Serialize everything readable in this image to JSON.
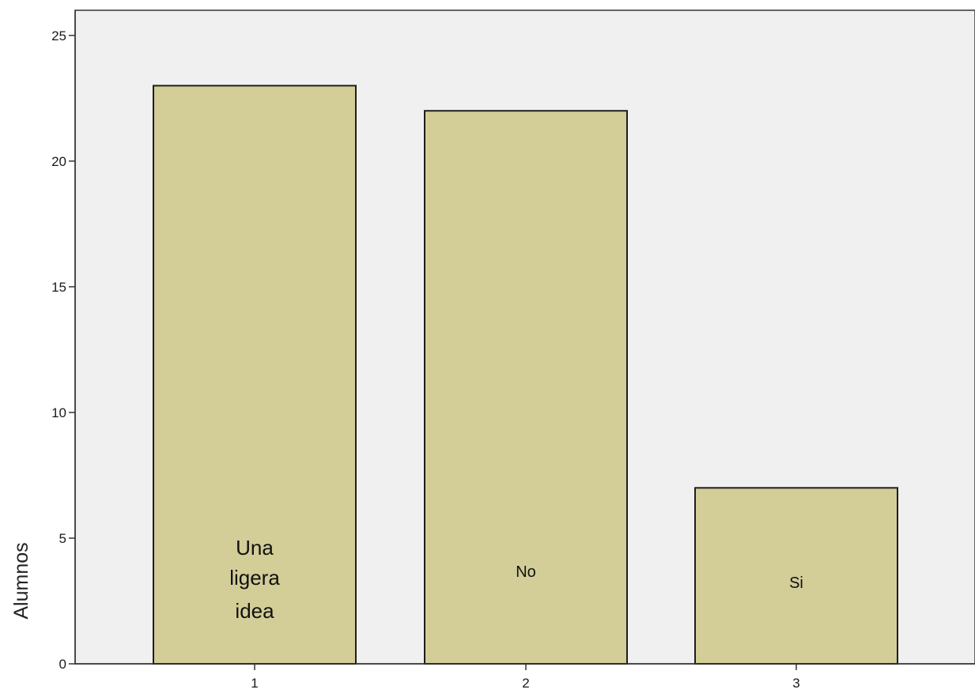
{
  "chart_data": {
    "type": "bar",
    "categories": [
      "1",
      "2",
      "3"
    ],
    "values": [
      23,
      22,
      7
    ],
    "bar_labels": [
      [
        "Una",
        "ligera",
        "idea"
      ],
      [
        "No"
      ],
      [
        "Si"
      ]
    ],
    "title": "",
    "xlabel": "",
    "ylabel": "Alumnos",
    "ylim": [
      0,
      26
    ],
    "yticks": [
      0,
      5,
      10,
      15,
      20,
      25
    ],
    "grid": false,
    "colors": {
      "plot_background": "#f0f0f0",
      "bar_fill": "#d3cd97",
      "bar_stroke": "#1e1e1e",
      "axis": "#333333"
    }
  }
}
